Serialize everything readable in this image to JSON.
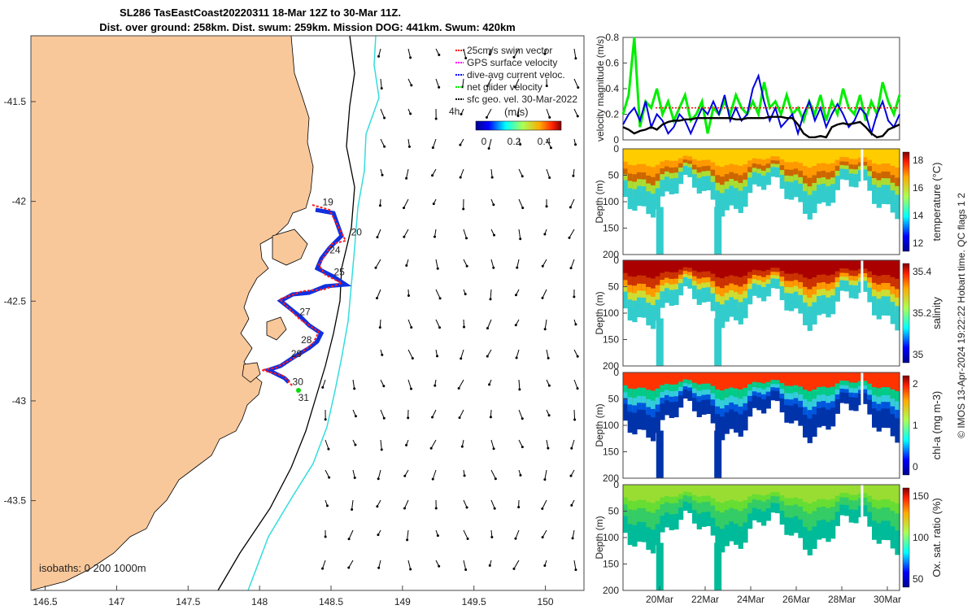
{
  "header": {
    "title_line1": "SL286 TasEastCoast20220311 18-Mar 12Z to 30-Mar 11Z.",
    "title_line2": "Dist. over ground: 258km. Dist. swum: 259km. Mission DOG: 441km. Swum: 420km"
  },
  "map": {
    "legend": [
      {
        "label": "25cm/s swim vector",
        "color": "#ff0000",
        "style": "dash"
      },
      {
        "label": "GPS surface velocity",
        "color": "#ff00ff",
        "style": "dash"
      },
      {
        "label": "dive-avg current veloc.",
        "color": "#0000ff",
        "style": "dash"
      },
      {
        "label": "net glider velocity",
        "color": "#00ee00",
        "style": "dash"
      },
      {
        "label": "sfc geo. vel. 30-Mar-2022",
        "color": "#000000",
        "style": "dash"
      }
    ],
    "scale_time": "4h",
    "colorbar_title": "(m/s)",
    "colorbar_ticks": [
      "0",
      "0.2",
      "0.4"
    ],
    "x_ticks": [
      "146.5",
      "147",
      "147.5",
      "148",
      "148.5",
      "149",
      "149.5",
      "150"
    ],
    "y_ticks": [
      "-41.5",
      "-42",
      "-42.5",
      "-43",
      "-43.5"
    ],
    "isobath_note": "isobaths: 0   200  1000m",
    "day_labels": [
      {
        "label": "19",
        "lon": 148.44,
        "lat": -42.02
      },
      {
        "label": "20",
        "lon": 148.64,
        "lat": -42.17
      },
      {
        "label": "24",
        "lon": 148.49,
        "lat": -42.26
      },
      {
        "label": "25",
        "lon": 148.52,
        "lat": -42.37
      },
      {
        "label": "27",
        "lon": 148.28,
        "lat": -42.57
      },
      {
        "label": "28",
        "lon": 148.29,
        "lat": -42.71
      },
      {
        "label": "29",
        "lon": 148.22,
        "lat": -42.78
      },
      {
        "label": "30",
        "lon": 148.23,
        "lat": -42.92
      },
      {
        "label": "31",
        "lon": 148.27,
        "lat": -43.0
      }
    ]
  },
  "chart_data": [
    {
      "type": "line",
      "ylabel": "velocity magnitude (m/s)",
      "ylim": [
        0,
        0.8
      ],
      "y_ticks": [
        "0",
        "0.2",
        "0.4",
        "0.6",
        "0.8"
      ],
      "series": [
        {
          "color": "#00ee00",
          "values": [
            0.2,
            0.35,
            0.8,
            0.1,
            0.3,
            0.25,
            0.4,
            0.2,
            0.3,
            0.15,
            0.25,
            0.35,
            0.15,
            0.2,
            0.3,
            0.05,
            0.25,
            0.2,
            0.3,
            0.2,
            0.35,
            0.25,
            0.2,
            0.3,
            0.2,
            0.45,
            0.25,
            0.3,
            0.2,
            0.35,
            0.2,
            0.25,
            0.15,
            0.3,
            0.2,
            0.35,
            0.15,
            0.3,
            0.2,
            0.4,
            0.25,
            0.2,
            0.35,
            0.15,
            0.3,
            0.2,
            0.45,
            0.3,
            0.2,
            0.35
          ]
        },
        {
          "color": "#0000dd",
          "values": [
            0.12,
            0.2,
            0.25,
            0.15,
            0.3,
            0.1,
            0.2,
            0.15,
            0.05,
            0.1,
            0.2,
            0.15,
            0.05,
            0.15,
            0.25,
            0.2,
            0.3,
            0.2,
            0.35,
            0.15,
            0.25,
            0.15,
            0.2,
            0.4,
            0.5,
            0.3,
            0.15,
            0.25,
            0.1,
            0.15,
            0.2,
            0.05,
            0.2,
            0.3,
            0.15,
            0.25,
            0.1,
            0.2,
            0.28,
            0.2,
            0.1,
            0.15,
            0.25,
            0.2,
            0.05,
            0.2,
            0.3,
            0.15,
            0.1,
            0.2
          ]
        },
        {
          "color": "#000000",
          "values": [
            0.1,
            0.08,
            0.05,
            0.07,
            0.08,
            0.1,
            0.08,
            0.12,
            0.14,
            0.15,
            0.15,
            0.16,
            0.16,
            0.17,
            0.17,
            0.17,
            0.17,
            0.17,
            0.17,
            0.17,
            0.16,
            0.16,
            0.17,
            0.17,
            0.17,
            0.17,
            0.18,
            0.18,
            0.18,
            0.17,
            0.17,
            0.12,
            0.05,
            0.02,
            0.02,
            0.03,
            0.02,
            0.1,
            0.12,
            0.13,
            0.12,
            0.13,
            0.14,
            0.1,
            0.05,
            0.02,
            0.03,
            0.08,
            0.1,
            0.12
          ]
        }
      ]
    },
    {
      "type": "heatmap",
      "ylabel": "Depth (m)",
      "cbar_label": "temperature (°C)",
      "ylim": [
        200,
        0
      ],
      "cbar_ticks": [
        "12",
        "14",
        "16",
        "18"
      ]
    },
    {
      "type": "heatmap",
      "ylabel": "Depth (m)",
      "cbar_label": "salinity",
      "ylim": [
        200,
        0
      ],
      "cbar_ticks": [
        "35",
        "35.2",
        "35.4"
      ]
    },
    {
      "type": "heatmap",
      "ylabel": "Depth (m)",
      "cbar_label": "chl-a (mg m-3)",
      "ylim": [
        200,
        0
      ],
      "cbar_ticks": [
        "0",
        "1",
        "2"
      ]
    },
    {
      "type": "heatmap",
      "ylabel": "Depth (m)",
      "cbar_label": "Ox. sat. ratio (%)",
      "ylim": [
        200,
        0
      ],
      "cbar_ticks": [
        "50",
        "100",
        "150"
      ],
      "x_ticks": [
        "20Mar",
        "22Mar",
        "24Mar",
        "26Mar",
        "28Mar",
        "30Mar"
      ]
    }
  ],
  "footer": {
    "credit": "© IMOS 13-Apr-2024 19:22:22 Hobart time. QC flags 1  2"
  }
}
